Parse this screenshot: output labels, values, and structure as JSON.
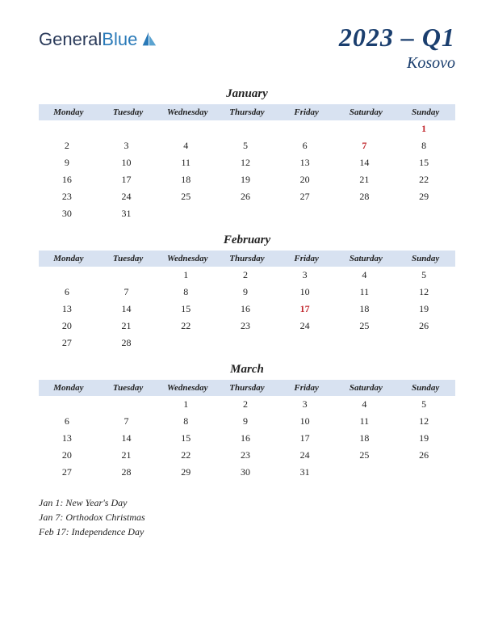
{
  "logo": {
    "part1": "General",
    "part2": "Blue"
  },
  "title": {
    "main": "2023 – Q1",
    "sub": "Kosovo"
  },
  "weekday_headers": [
    "Monday",
    "Tuesday",
    "Wednesday",
    "Thursday",
    "Friday",
    "Saturday",
    "Sunday"
  ],
  "colors": {
    "header_bg": "#d8e2f1",
    "title_color": "#1a3e6e",
    "holiday_color": "#c1272d",
    "text_color": "#222222"
  },
  "months": [
    {
      "name": "January",
      "weeks": [
        [
          "",
          "",
          "",
          "",
          "",
          "",
          "1"
        ],
        [
          "2",
          "3",
          "4",
          "5",
          "6",
          "7",
          "8"
        ],
        [
          "9",
          "10",
          "11",
          "12",
          "13",
          "14",
          "15"
        ],
        [
          "16",
          "17",
          "18",
          "19",
          "20",
          "21",
          "22"
        ],
        [
          "23",
          "24",
          "25",
          "26",
          "27",
          "28",
          "29"
        ],
        [
          "30",
          "31",
          "",
          "",
          "",
          "",
          ""
        ]
      ],
      "holidays": [
        [
          0,
          6
        ],
        [
          1,
          5
        ]
      ]
    },
    {
      "name": "February",
      "weeks": [
        [
          "",
          "",
          "1",
          "2",
          "3",
          "4",
          "5"
        ],
        [
          "6",
          "7",
          "8",
          "9",
          "10",
          "11",
          "12"
        ],
        [
          "13",
          "14",
          "15",
          "16",
          "17",
          "18",
          "19"
        ],
        [
          "20",
          "21",
          "22",
          "23",
          "24",
          "25",
          "26"
        ],
        [
          "27",
          "28",
          "",
          "",
          "",
          "",
          ""
        ]
      ],
      "holidays": [
        [
          2,
          4
        ]
      ]
    },
    {
      "name": "March",
      "weeks": [
        [
          "",
          "",
          "1",
          "2",
          "3",
          "4",
          "5"
        ],
        [
          "6",
          "7",
          "8",
          "9",
          "10",
          "11",
          "12"
        ],
        [
          "13",
          "14",
          "15",
          "16",
          "17",
          "18",
          "19"
        ],
        [
          "20",
          "21",
          "22",
          "23",
          "24",
          "25",
          "26"
        ],
        [
          "27",
          "28",
          "29",
          "30",
          "31",
          "",
          ""
        ]
      ],
      "holidays": []
    }
  ],
  "holiday_list": [
    "Jan 1: New Year's Day",
    "Jan 7: Orthodox Christmas",
    "Feb 17: Independence Day"
  ]
}
